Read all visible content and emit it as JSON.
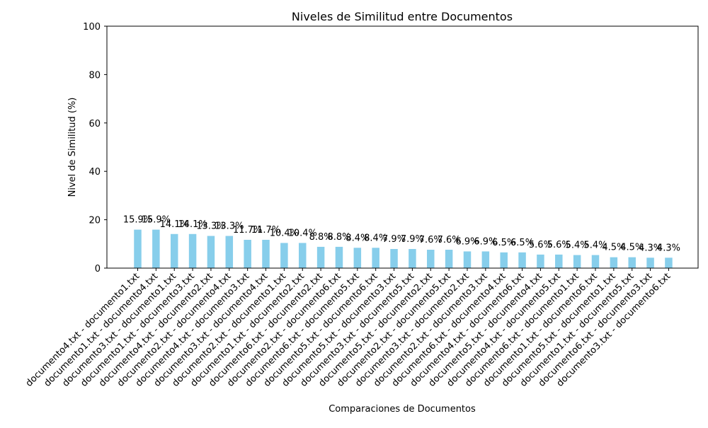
{
  "chart_data": {
    "type": "bar",
    "title": "Niveles de Similitud entre Documentos",
    "xlabel": "Comparaciones de Documentos",
    "ylabel": "Nivel de Similitud (%)",
    "ylim": [
      0,
      100
    ],
    "yticks": [
      "0",
      "20",
      "40",
      "60",
      "80",
      "100"
    ],
    "bar_color": "#87ceeb",
    "grid": false,
    "categories": [
      "documento4.txt - documento1.txt",
      "documento1.txt - documento4.txt",
      "documento3.txt - documento1.txt",
      "documento1.txt - documento3.txt",
      "documento4.txt - documento2.txt",
      "documento2.txt - documento4.txt",
      "documento4.txt - documento3.txt",
      "documento3.txt - documento4.txt",
      "documento2.txt - documento1.txt",
      "documento1.txt - documento2.txt",
      "documento6.txt - documento2.txt",
      "documento2.txt - documento6.txt",
      "documento6.txt - documento5.txt",
      "documento5.txt - documento6.txt",
      "documento5.txt - documento3.txt",
      "documento3.txt - documento5.txt",
      "documento5.txt - documento2.txt",
      "documento2.txt - documento5.txt",
      "documento3.txt - documento2.txt",
      "documento2.txt - documento3.txt",
      "documento6.txt - documento4.txt",
      "documento4.txt - documento6.txt",
      "documento5.txt - documento4.txt",
      "documento4.txt - documento5.txt",
      "documento6.txt - documento1.txt",
      "documento1.txt - documento6.txt",
      "documento5.txt - documento1.txt",
      "documento1.txt - documento5.txt",
      "documento6.txt - documento3.txt",
      "documento3.txt - documento6.txt"
    ],
    "values": [
      15.9,
      15.9,
      14.1,
      14.1,
      13.3,
      13.3,
      11.7,
      11.7,
      10.4,
      10.4,
      8.8,
      8.8,
      8.4,
      8.4,
      7.9,
      7.9,
      7.6,
      7.6,
      6.9,
      6.9,
      6.5,
      6.5,
      5.6,
      5.6,
      5.4,
      5.4,
      4.5,
      4.5,
      4.3,
      4.3
    ],
    "data_labels": [
      "15.9%",
      "15.9%",
      "14.1%",
      "14.1%",
      "13.3%",
      "13.3%",
      "11.7%",
      "11.7%",
      "10.4%",
      "10.4%",
      "8.8%",
      "8.8%",
      "8.4%",
      "8.4%",
      "7.9%",
      "7.9%",
      "7.6%",
      "7.6%",
      "6.9%",
      "6.9%",
      "6.5%",
      "6.5%",
      "5.6%",
      "5.6%",
      "5.4%",
      "5.4%",
      "4.5%",
      "4.5%",
      "4.3%",
      "4.3%"
    ]
  }
}
